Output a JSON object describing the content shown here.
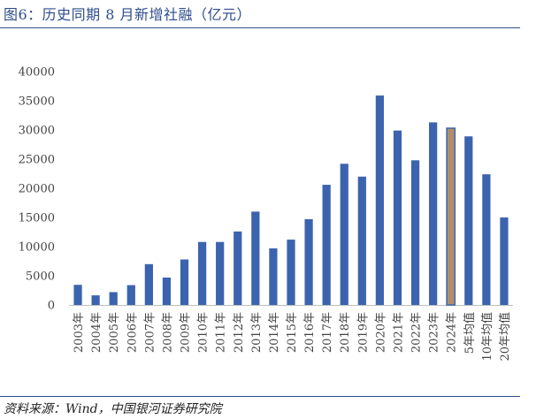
{
  "title": "图6：历史同期 8 月新增社融（亿元）",
  "source": "资料来源：Wind，中国银河证券研究院",
  "colors": {
    "bar": "#3c64ae",
    "highlight": "#b08e6b",
    "axis": "#bfbfbf",
    "text": "#444444",
    "brand": "#2e4d8c"
  },
  "chart_data": {
    "type": "bar",
    "title": "",
    "xlabel": "",
    "ylabel": "",
    "ylim": [
      0,
      40000
    ],
    "yticks": [
      "0",
      "5000",
      "10000",
      "15000",
      "20000",
      "25000",
      "30000",
      "35000",
      "40000"
    ],
    "grid": false,
    "highlight_category": "2024年",
    "categories": [
      "2003年",
      "2004年",
      "2005年",
      "2006年",
      "2007年",
      "2008年",
      "2009年",
      "2010年",
      "2011年",
      "2012年",
      "2013年",
      "2014年",
      "2015年",
      "2016年",
      "2017年",
      "2018年",
      "2019年",
      "2020年",
      "2021年",
      "2022年",
      "2023年",
      "2024年",
      "5年均值",
      "10年均值",
      "20年均值"
    ],
    "values": [
      3450,
      1650,
      2200,
      3400,
      7000,
      4700,
      7800,
      10800,
      10800,
      12600,
      16000,
      9700,
      11200,
      14700,
      20600,
      24200,
      22000,
      35900,
      29900,
      24800,
      31300,
      30300,
      28900,
      22400,
      15000
    ]
  }
}
